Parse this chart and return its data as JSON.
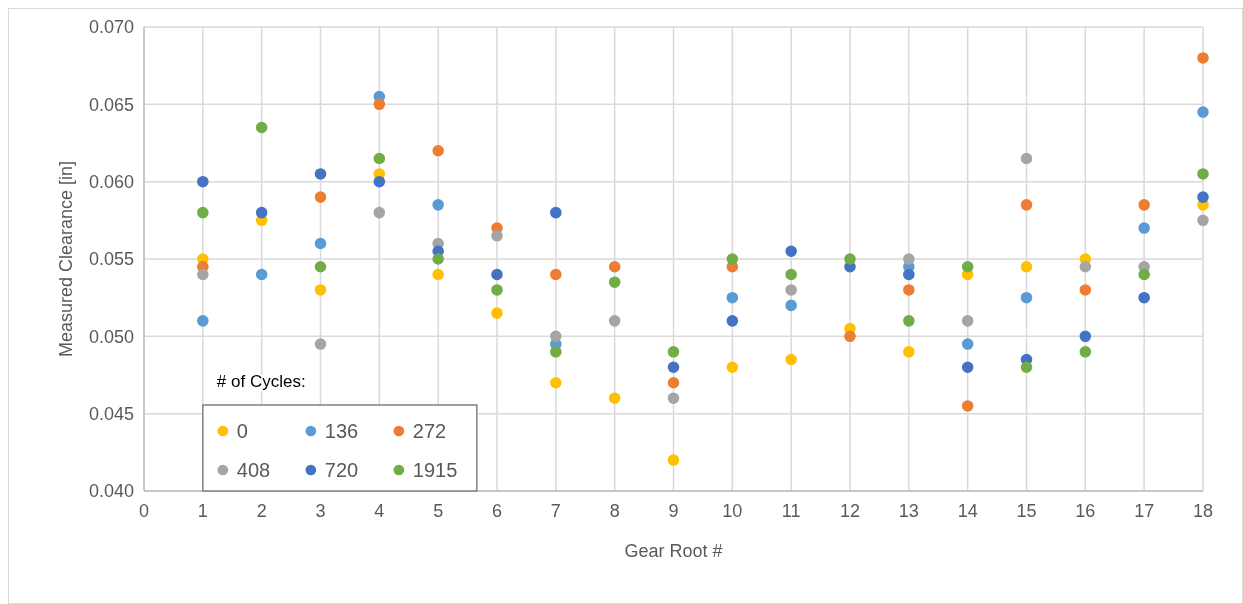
{
  "chart_data": {
    "type": "scatter",
    "xlabel": "Gear Root #",
    "ylabel": "Measured Clearance [in]",
    "legend_title": "# of Cycles:",
    "x": [
      1,
      2,
      3,
      4,
      5,
      6,
      7,
      8,
      9,
      10,
      11,
      12,
      13,
      14,
      15,
      16,
      17,
      18
    ],
    "xlim": [
      0,
      18
    ],
    "xticks": [
      0,
      1,
      2,
      3,
      4,
      5,
      6,
      7,
      8,
      9,
      10,
      11,
      12,
      13,
      14,
      15,
      16,
      17,
      18
    ],
    "ylim": [
      0.04,
      0.07
    ],
    "yticks": [
      {
        "value": 0.04,
        "label": "0.040"
      },
      {
        "value": 0.045,
        "label": "0.045"
      },
      {
        "value": 0.05,
        "label": "0.050"
      },
      {
        "value": 0.055,
        "label": "0.055"
      },
      {
        "value": 0.06,
        "label": "0.060"
      },
      {
        "value": 0.065,
        "label": "0.065"
      },
      {
        "value": 0.07,
        "label": "0.070"
      }
    ],
    "grid": true,
    "legend": "bottom left",
    "marker": "circle",
    "series": [
      {
        "name": "0",
        "color": "#ffc000",
        "values": [
          0.055,
          0.0575,
          0.053,
          0.0605,
          0.054,
          0.0515,
          0.047,
          0.046,
          0.042,
          0.048,
          0.0485,
          0.0505,
          0.049,
          0.054,
          0.0545,
          0.055,
          null,
          0.0585
        ]
      },
      {
        "name": "136",
        "color": "#5b9bd5",
        "values": [
          0.051,
          0.054,
          0.056,
          0.0655,
          0.0585,
          null,
          0.0495,
          null,
          null,
          0.0525,
          0.052,
          null,
          0.0545,
          0.0495,
          0.0525,
          null,
          0.057,
          0.0645
        ]
      },
      {
        "name": "272",
        "color": "#ed7d31",
        "values": [
          0.0545,
          null,
          0.059,
          0.065,
          0.062,
          0.057,
          0.054,
          0.0545,
          0.047,
          0.0545,
          null,
          0.05,
          0.053,
          0.0455,
          0.0585,
          0.053,
          0.0585,
          0.068
        ]
      },
      {
        "name": "408",
        "color": "#a5a5a5",
        "values": [
          0.054,
          null,
          0.0495,
          0.058,
          0.056,
          0.0565,
          0.05,
          0.051,
          0.046,
          null,
          0.053,
          null,
          0.055,
          0.051,
          0.0615,
          0.0545,
          0.0545,
          0.0575
        ]
      },
      {
        "name": "720",
        "color": "#4472c4",
        "values": [
          0.06,
          0.058,
          0.0605,
          0.06,
          0.0555,
          0.054,
          0.058,
          null,
          0.048,
          0.051,
          0.0555,
          0.0545,
          0.054,
          0.048,
          0.0485,
          0.05,
          0.0525,
          0.059
        ]
      },
      {
        "name": "1915",
        "color": "#70ad47",
        "values": [
          0.058,
          0.0635,
          0.0545,
          0.0615,
          0.055,
          0.053,
          0.049,
          0.0535,
          0.049,
          0.055,
          0.054,
          0.055,
          0.051,
          0.0545,
          0.048,
          0.049,
          0.054,
          0.0605
        ]
      }
    ]
  }
}
